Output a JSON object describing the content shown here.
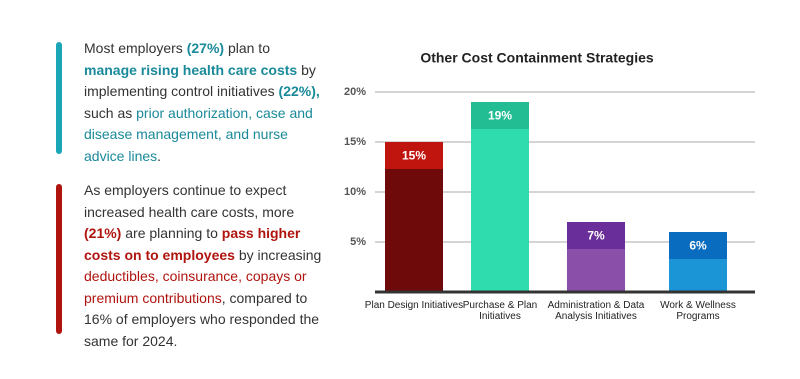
{
  "text_blocks": [
    [
      "Most employers ",
      "(27%)",
      " plan to ",
      "manage rising health care costs",
      " by implementing control initiatives ",
      "(22%),",
      " such as ",
      "prior authorization, case and disease management, and nurse advice lines",
      "."
    ],
    [
      "As employers continue to expect increased health care costs, more ",
      "(21%)",
      " are planning to ",
      "pass higher costs on to employees",
      " by increasing ",
      "deductibles, coinsurance, copays or premium contributions",
      ", compared to 16% of employers who responded the same for 2024."
    ]
  ],
  "chart_data": {
    "type": "bar",
    "title": "Other Cost Containment Strategies",
    "categories": [
      "Plan Design Initiatives",
      "Purchase & Plan Initiatives",
      "Administration & Data Analysis Initiatives",
      "Work & Wellness Programs"
    ],
    "values": [
      15,
      19,
      7,
      6
    ],
    "value_labels": [
      "15%",
      "19%",
      "7%",
      "6%"
    ],
    "colors": [
      "#6e0a0a",
      "#2fdcae",
      "#8a4fa8",
      "#1b95d6"
    ],
    "label_colors": [
      "#c0140f",
      "#22bd93",
      "#6a2e9a",
      "#0a6cbf"
    ],
    "ylim": [
      0,
      20
    ],
    "yticks": [
      {
        "value": 5,
        "label": "5%"
      },
      {
        "value": 10,
        "label": "10%"
      },
      {
        "value": 15,
        "label": "15%"
      },
      {
        "value": 20,
        "label": "20%"
      }
    ],
    "grid": true
  }
}
